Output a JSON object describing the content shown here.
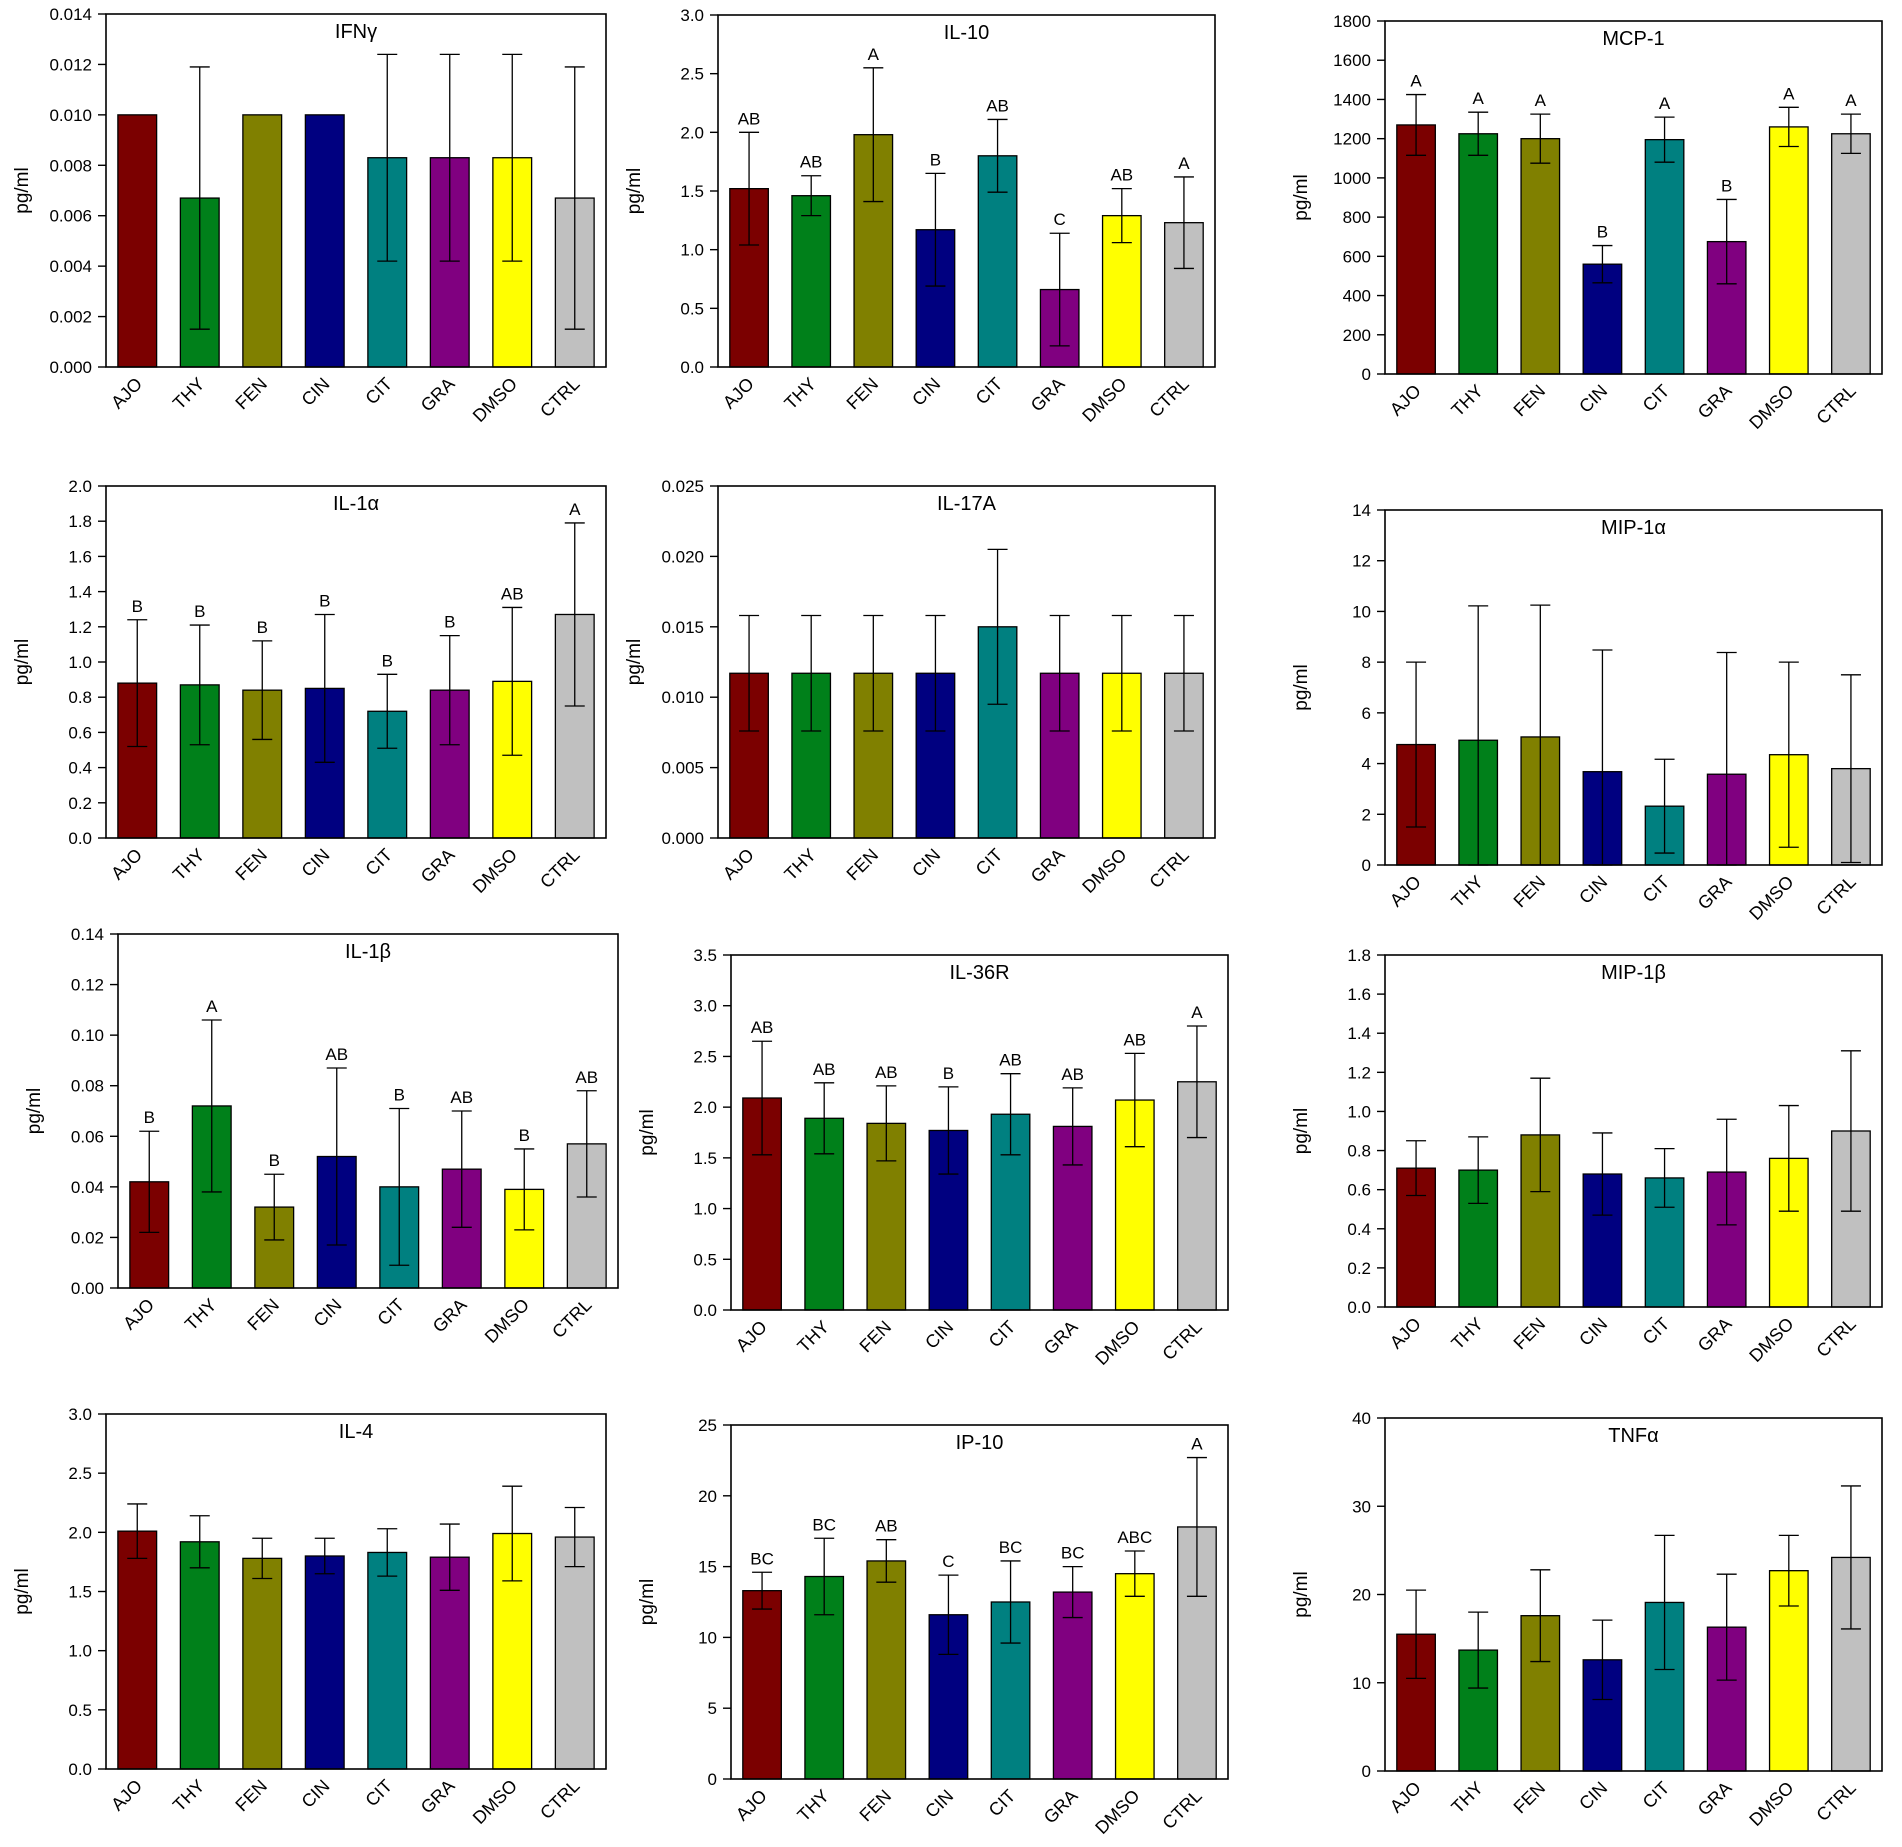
{
  "categories": [
    "AJO",
    "THY",
    "FEN",
    "CIN",
    "CIT",
    "GRA",
    "DMSO",
    "CTRL"
  ],
  "colors": [
    "#7B0000",
    "#00801A",
    "#808000",
    "#000080",
    "#008080",
    "#800080",
    "#FFFF00",
    "#C0C0C0"
  ],
  "ylabel": "pg/ml",
  "chart_data": [
    {
      "type": "bar",
      "title": "IFNγ",
      "ylim": [
        0,
        0.014
      ],
      "ticks": [
        "0.000",
        "0.002",
        "0.004",
        "0.006",
        "0.008",
        "0.010",
        "0.012",
        "0.014"
      ],
      "values": [
        0.01,
        0.0067,
        0.01,
        0.01,
        0.0083,
        0.0083,
        0.0083,
        0.0067
      ],
      "errors": [
        0,
        0.0052,
        0,
        0,
        0.0041,
        0.0041,
        0.0041,
        0.0052
      ],
      "letters": [
        "",
        "",
        "",
        "",
        "",
        "",
        "",
        ""
      ]
    },
    {
      "type": "bar",
      "title": "IL-10",
      "ylim": [
        0,
        3.0
      ],
      "ticks": [
        "0.0",
        "0.5",
        "1.0",
        "1.5",
        "2.0",
        "2.5",
        "3.0"
      ],
      "values": [
        1.52,
        1.46,
        1.98,
        1.17,
        1.8,
        0.66,
        1.29,
        1.23
      ],
      "errors": [
        0.48,
        0.17,
        0.57,
        0.48,
        0.31,
        0.48,
        0.23,
        0.39
      ],
      "letters": [
        "AB",
        "AB",
        "A",
        "B",
        "AB",
        "C",
        "AB",
        "A"
      ]
    },
    {
      "type": "bar",
      "title": "MCP-1",
      "ylim": [
        0,
        1800
      ],
      "ticks": [
        "0",
        "200",
        "400",
        "600",
        "800",
        "1000",
        "1200",
        "1400",
        "1600",
        "1800"
      ],
      "values": [
        1270,
        1225,
        1200,
        560,
        1195,
        675,
        1260,
        1225
      ],
      "errors": [
        155,
        110,
        125,
        95,
        115,
        215,
        100,
        100
      ],
      "letters": [
        "A",
        "A",
        "A",
        "B",
        "A",
        "B",
        "A",
        "A"
      ]
    },
    {
      "type": "bar",
      "title": "IL-1α",
      "ylim": [
        0,
        2.0
      ],
      "ticks": [
        "0.0",
        "0.2",
        "0.4",
        "0.6",
        "0.8",
        "1.0",
        "1.2",
        "1.4",
        "1.6",
        "1.8",
        "2.0"
      ],
      "values": [
        0.88,
        0.87,
        0.84,
        0.85,
        0.72,
        0.84,
        0.89,
        1.27
      ],
      "errors": [
        0.36,
        0.34,
        0.28,
        0.42,
        0.21,
        0.31,
        0.42,
        0.52
      ],
      "letters": [
        "B",
        "B",
        "B",
        "B",
        "B",
        "B",
        "AB",
        "A"
      ]
    },
    {
      "type": "bar",
      "title": "IL-17A",
      "ylim": [
        0,
        0.025
      ],
      "ticks": [
        "0.000",
        "0.005",
        "0.010",
        "0.015",
        "0.020",
        "0.025"
      ],
      "values": [
        0.0117,
        0.0117,
        0.0117,
        0.0117,
        0.015,
        0.0117,
        0.0117,
        0.0117
      ],
      "errors": [
        0.0041,
        0.0041,
        0.0041,
        0.0041,
        0.0055,
        0.0041,
        0.0041,
        0.0041
      ],
      "letters": [
        "",
        "",
        "",
        "",
        "",
        "",
        "",
        ""
      ]
    },
    {
      "type": "bar",
      "title": "MIP-1α",
      "ylim": [
        0,
        14
      ],
      "ticks": [
        "0",
        "2",
        "4",
        "6",
        "8",
        "10",
        "12",
        "14"
      ],
      "values": [
        4.75,
        4.92,
        5.05,
        3.68,
        2.32,
        3.58,
        4.35,
        3.8
      ],
      "errors": [
        3.25,
        5.3,
        5.2,
        4.8,
        1.85,
        4.8,
        3.65,
        3.7
      ],
      "letters": [
        "",
        "",
        "",
        "",
        "",
        "",
        "",
        ""
      ]
    },
    {
      "type": "bar",
      "title": "IL-1β",
      "ylim": [
        0,
        0.14
      ],
      "ticks": [
        "0.00",
        "0.02",
        "0.04",
        "0.06",
        "0.08",
        "0.10",
        "0.12",
        "0.14"
      ],
      "values": [
        0.042,
        0.072,
        0.032,
        0.052,
        0.04,
        0.047,
        0.039,
        0.057
      ],
      "errors": [
        0.02,
        0.034,
        0.013,
        0.035,
        0.031,
        0.023,
        0.016,
        0.021
      ],
      "letters": [
        "B",
        "A",
        "B",
        "AB",
        "B",
        "AB",
        "B",
        "AB"
      ]
    },
    {
      "type": "bar",
      "title": "IL-36R",
      "ylim": [
        0,
        3.5
      ],
      "ticks": [
        "0.0",
        "0.5",
        "1.0",
        "1.5",
        "2.0",
        "2.5",
        "3.0",
        "3.5"
      ],
      "values": [
        2.09,
        1.89,
        1.84,
        1.77,
        1.93,
        1.81,
        2.07,
        2.25
      ],
      "errors": [
        0.56,
        0.35,
        0.37,
        0.43,
        0.4,
        0.38,
        0.46,
        0.55
      ],
      "letters": [
        "AB",
        "AB",
        "AB",
        "B",
        "AB",
        "AB",
        "AB",
        "A"
      ]
    },
    {
      "type": "bar",
      "title": "MIP-1β",
      "ylim": [
        0,
        1.8
      ],
      "ticks": [
        "0.0",
        "0.2",
        "0.4",
        "0.6",
        "0.8",
        "1.0",
        "1.2",
        "1.4",
        "1.6",
        "1.8"
      ],
      "values": [
        0.71,
        0.7,
        0.88,
        0.68,
        0.66,
        0.69,
        0.76,
        0.9
      ],
      "errors": [
        0.14,
        0.17,
        0.29,
        0.21,
        0.15,
        0.27,
        0.27,
        0.41
      ],
      "letters": [
        "",
        "",
        "",
        "",
        "",
        "",
        "",
        ""
      ]
    },
    {
      "type": "bar",
      "title": "IL-4",
      "ylim": [
        0,
        3.0
      ],
      "ticks": [
        "0.0",
        "0.5",
        "1.0",
        "1.5",
        "2.0",
        "2.5",
        "3.0"
      ],
      "values": [
        2.01,
        1.92,
        1.78,
        1.8,
        1.83,
        1.79,
        1.99,
        1.96
      ],
      "errors": [
        0.23,
        0.22,
        0.17,
        0.15,
        0.2,
        0.28,
        0.4,
        0.25
      ],
      "letters": [
        "",
        "",
        "",
        "",
        "",
        "",
        "",
        ""
      ]
    },
    {
      "type": "bar",
      "title": "IP-10",
      "ylim": [
        0,
        25
      ],
      "ticks": [
        "0",
        "5",
        "10",
        "15",
        "20",
        "25"
      ],
      "values": [
        13.3,
        14.3,
        15.4,
        11.6,
        12.5,
        13.2,
        14.5,
        17.8
      ],
      "errors": [
        1.3,
        2.7,
        1.5,
        2.8,
        2.9,
        1.8,
        1.6,
        4.9
      ],
      "letters": [
        "BC",
        "BC",
        "AB",
        "C",
        "BC",
        "BC",
        "ABC",
        "A"
      ]
    },
    {
      "type": "bar",
      "title": "TNFα",
      "ylim": [
        0,
        40
      ],
      "ticks": [
        "0",
        "10",
        "20",
        "30",
        "40"
      ],
      "values": [
        15.5,
        13.7,
        17.6,
        12.6,
        19.1,
        16.3,
        22.7,
        24.2
      ],
      "errors": [
        5.0,
        4.3,
        5.2,
        4.5,
        7.6,
        6.0,
        4.0,
        8.1
      ],
      "letters": [
        "",
        "",
        "",
        "",
        "",
        "",
        "",
        ""
      ]
    }
  ]
}
